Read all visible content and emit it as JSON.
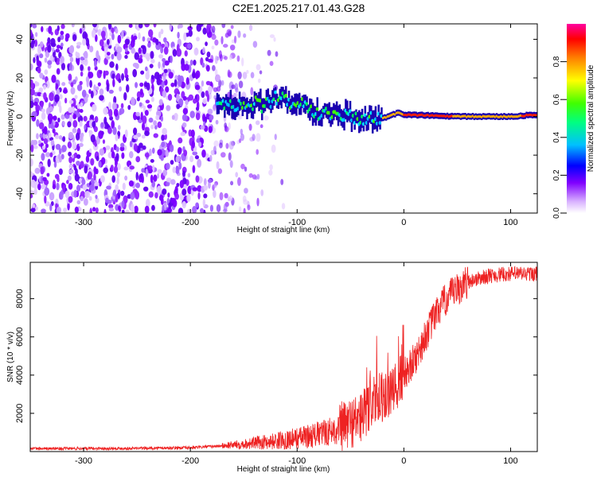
{
  "title": "C2E1.2025.217.01.43.G28",
  "chart_data": [
    {
      "type": "heatmap",
      "title": "C2E1.2025.217.01.43.G28",
      "xlabel": "Height of straight line (km)",
      "ylabel": "Frequency (Hz)",
      "xlim": [
        -350,
        125
      ],
      "ylim": [
        -50,
        48
      ],
      "x_ticks": [
        -300,
        -200,
        -100,
        0,
        100
      ],
      "y_ticks": [
        -40,
        -20,
        0,
        20,
        40
      ],
      "colorbar": {
        "label": "Normalized spectral amplitude",
        "range": [
          0.0,
          1.0
        ],
        "ticks": [
          0.0,
          0.2,
          0.4,
          0.6,
          0.8
        ],
        "colormap": [
          "#ffffff",
          "#d9b3ff",
          "#8000ff",
          "#0000ff",
          "#00c0ff",
          "#00ff80",
          "#40ff00",
          "#ffff00",
          "#ff8000",
          "#ff0000",
          "#ff00a0"
        ]
      },
      "ridge": [
        {
          "x": -170,
          "y": 6
        },
        {
          "x": -150,
          "y": 5
        },
        {
          "x": -130,
          "y": 7
        },
        {
          "x": -120,
          "y": 9
        },
        {
          "x": -100,
          "y": 8
        },
        {
          "x": -80,
          "y": 2
        },
        {
          "x": -60,
          "y": 2
        },
        {
          "x": -40,
          "y": -2
        },
        {
          "x": -20,
          "y": -1
        },
        {
          "x": -5,
          "y": 2
        },
        {
          "x": 0,
          "y": 1
        },
        {
          "x": 50,
          "y": 0
        },
        {
          "x": 100,
          "y": 0
        },
        {
          "x": 125,
          "y": 1
        }
      ]
    },
    {
      "type": "line",
      "xlabel": "Height of straight line (km)",
      "ylabel": "SNR (10 * v/v)",
      "xlim": [
        -350,
        125
      ],
      "ylim": [
        0,
        9900
      ],
      "x_ticks": [
        -300,
        -200,
        -100,
        0,
        100
      ],
      "y_ticks": [
        2000,
        4000,
        6000,
        8000
      ],
      "color": "#ee2222",
      "series": [
        {
          "x": [
            -350,
            -300,
            -250,
            -200,
            -170,
            -150,
            -120,
            -100,
            -80,
            -60,
            -40,
            -30,
            -20,
            -10,
            0,
            10,
            20,
            30,
            40,
            60,
            80,
            100,
            125
          ],
          "y": [
            150,
            160,
            170,
            200,
            300,
            400,
            550,
            700,
            900,
            1200,
            1800,
            2500,
            2900,
            3000,
            4000,
            4800,
            6000,
            7200,
            8000,
            8900,
            9200,
            9300,
            9300
          ]
        }
      ]
    }
  ]
}
